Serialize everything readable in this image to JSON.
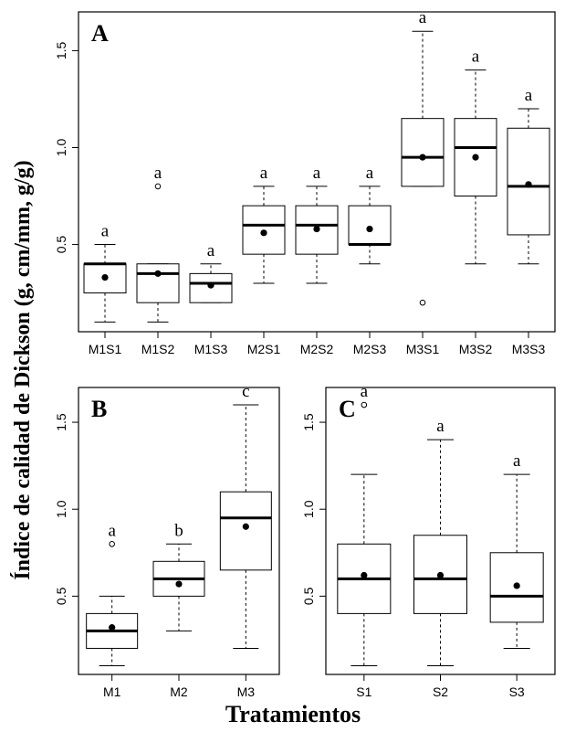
{
  "ylabel": "Índice de calidad de Dickson (g, cm/mm, g/g)",
  "xlabel": "Tratamientos",
  "chart_data": [
    {
      "panel": "A",
      "type": "boxplot",
      "ylim": [
        0.05,
        1.7
      ],
      "yticks": [
        0.5,
        1.0,
        1.5
      ],
      "categories": [
        "M1S1",
        "M1S2",
        "M1S3",
        "M2S1",
        "M2S2",
        "M2S3",
        "M3S1",
        "M3S2",
        "M3S3"
      ],
      "boxes": [
        {
          "whisker_low": 0.1,
          "q1": 0.25,
          "median": 0.4,
          "q3": 0.4,
          "whisker_high": 0.5,
          "mean": 0.33,
          "outliers": [],
          "letter": "a"
        },
        {
          "whisker_low": 0.1,
          "q1": 0.2,
          "median": 0.35,
          "q3": 0.4,
          "whisker_high": 0.4,
          "mean": 0.35,
          "outliers": [
            0.8
          ],
          "letter": "a"
        },
        {
          "whisker_low": 0.2,
          "q1": 0.2,
          "median": 0.3,
          "q3": 0.35,
          "whisker_high": 0.4,
          "mean": 0.29,
          "outliers": [],
          "letter": "a"
        },
        {
          "whisker_low": 0.3,
          "q1": 0.45,
          "median": 0.6,
          "q3": 0.7,
          "whisker_high": 0.8,
          "mean": 0.56,
          "outliers": [],
          "letter": "a"
        },
        {
          "whisker_low": 0.3,
          "q1": 0.45,
          "median": 0.6,
          "q3": 0.7,
          "whisker_high": 0.8,
          "mean": 0.58,
          "outliers": [],
          "letter": "a"
        },
        {
          "whisker_low": 0.4,
          "q1": 0.5,
          "median": 0.5,
          "q3": 0.7,
          "whisker_high": 0.8,
          "mean": 0.58,
          "outliers": [],
          "letter": "a"
        },
        {
          "whisker_low": 0.8,
          "q1": 0.8,
          "median": 0.95,
          "q3": 1.15,
          "whisker_high": 1.6,
          "mean": 0.95,
          "outliers": [
            0.2
          ],
          "letter": "a"
        },
        {
          "whisker_low": 0.4,
          "q1": 0.75,
          "median": 1.0,
          "q3": 1.15,
          "whisker_high": 1.4,
          "mean": 0.95,
          "outliers": [],
          "letter": "a"
        },
        {
          "whisker_low": 0.4,
          "q1": 0.55,
          "median": 0.8,
          "q3": 1.1,
          "whisker_high": 1.2,
          "mean": 0.81,
          "outliers": [],
          "letter": "a"
        }
      ]
    },
    {
      "panel": "B",
      "type": "boxplot",
      "ylim": [
        0.05,
        1.7
      ],
      "yticks": [
        0.5,
        1.0,
        1.5
      ],
      "categories": [
        "M1",
        "M2",
        "M3"
      ],
      "boxes": [
        {
          "whisker_low": 0.1,
          "q1": 0.2,
          "median": 0.3,
          "q3": 0.4,
          "whisker_high": 0.5,
          "mean": 0.32,
          "outliers": [
            0.8
          ],
          "letter": "a"
        },
        {
          "whisker_low": 0.3,
          "q1": 0.5,
          "median": 0.6,
          "q3": 0.7,
          "whisker_high": 0.8,
          "mean": 0.57,
          "outliers": [],
          "letter": "b"
        },
        {
          "whisker_low": 0.2,
          "q1": 0.65,
          "median": 0.95,
          "q3": 1.1,
          "whisker_high": 1.6,
          "mean": 0.9,
          "outliers": [],
          "letter": "c"
        }
      ]
    },
    {
      "panel": "C",
      "type": "boxplot",
      "ylim": [
        0.05,
        1.7
      ],
      "yticks": [
        0.5,
        1.0,
        1.5
      ],
      "categories": [
        "S1",
        "S2",
        "S3"
      ],
      "boxes": [
        {
          "whisker_low": 0.1,
          "q1": 0.4,
          "median": 0.6,
          "q3": 0.8,
          "whisker_high": 1.2,
          "mean": 0.62,
          "outliers": [
            1.6
          ],
          "letter": "a"
        },
        {
          "whisker_low": 0.1,
          "q1": 0.4,
          "median": 0.6,
          "q3": 0.85,
          "whisker_high": 1.4,
          "mean": 0.62,
          "outliers": [],
          "letter": "a"
        },
        {
          "whisker_low": 0.2,
          "q1": 0.35,
          "median": 0.5,
          "q3": 0.75,
          "whisker_high": 1.2,
          "mean": 0.56,
          "outliers": [],
          "letter": "a"
        }
      ]
    }
  ]
}
